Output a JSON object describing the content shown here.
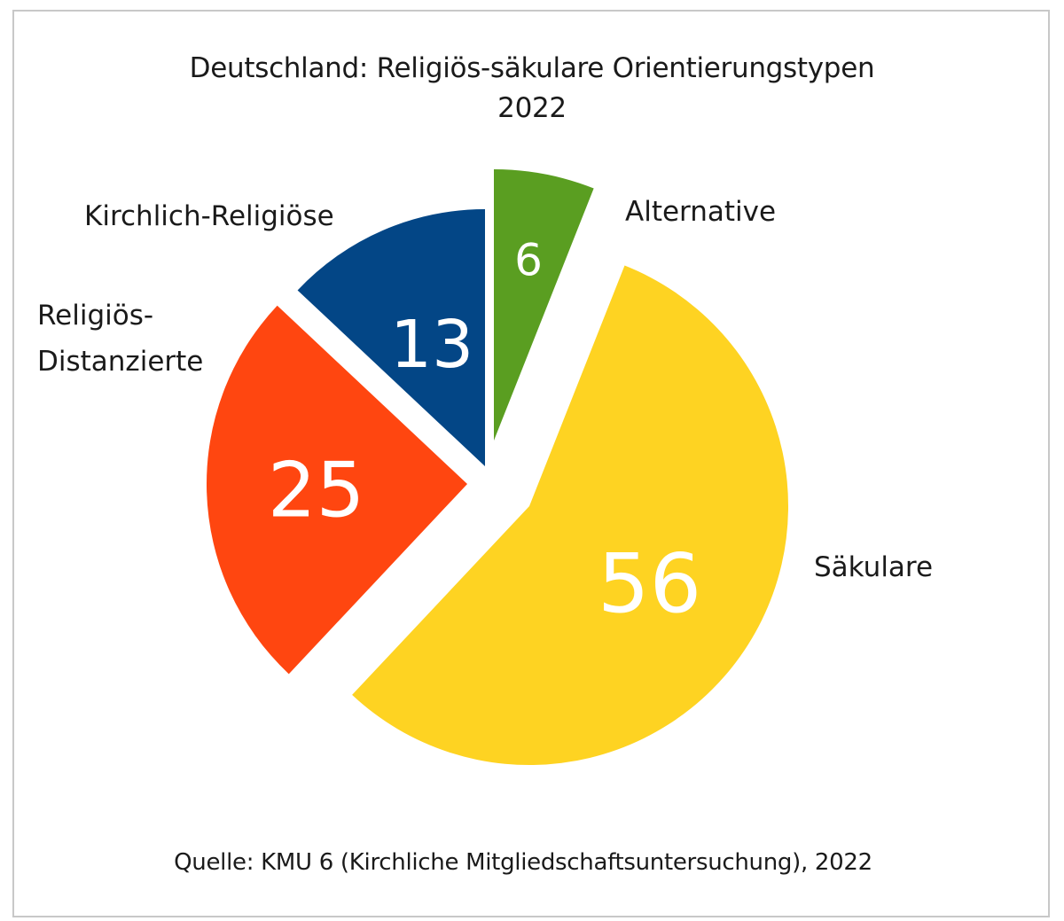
{
  "chart_data": {
    "type": "pie",
    "title": "Deutschland: Religiös-säkulare Orientierungstypen",
    "subtitle": "2022",
    "source": "Quelle: KMU 6 (Kirchliche Mitgliedschaftsuntersuchung), 2022",
    "slices": [
      {
        "name": "Alternative",
        "label_lines": [
          "Alternative"
        ],
        "value": 6,
        "color": "#5a9e21"
      },
      {
        "name": "Säkulare",
        "label_lines": [
          "Säkulare"
        ],
        "value": 56,
        "color": "#fed322"
      },
      {
        "name": "Religiös-Distanzierte",
        "label_lines": [
          "Religiös-",
          "Distanzierte"
        ],
        "value": 25,
        "color": "#ff4610"
      },
      {
        "name": "Kirchlich-Religiöse",
        "label_lines": [
          "Kirchlich-Religiöse"
        ],
        "value": 13,
        "color": "#034686"
      }
    ]
  }
}
